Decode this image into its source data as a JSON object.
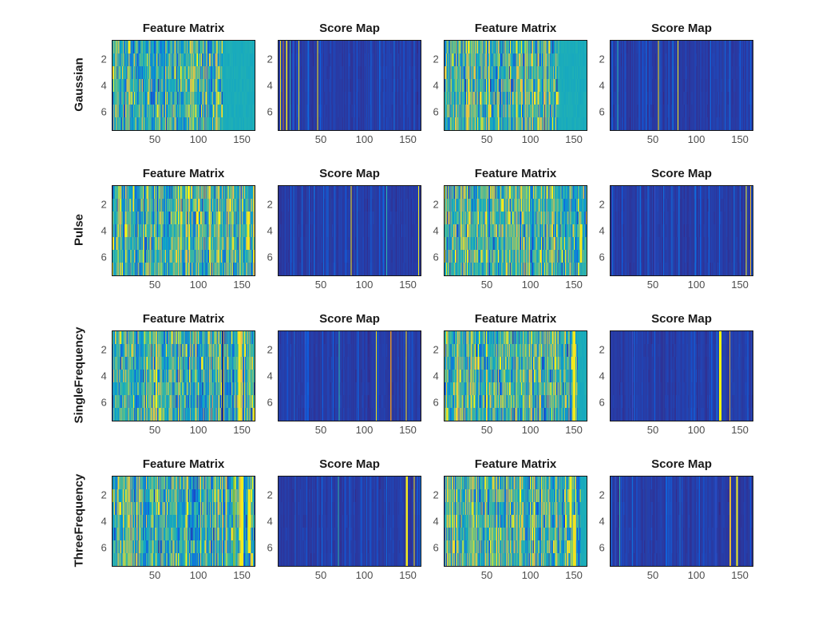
{
  "styles": {
    "background": "#ffffff",
    "title_color": "#1a1a1a",
    "tick_color": "#4d4d4d",
    "axis_color": "#151515",
    "score_background": "#352a87",
    "feature_base": "#21b1b4",
    "highlight_yellow": "#f9fb0e"
  },
  "chart_data": {
    "type": "heatmap",
    "colormap": "parula",
    "grid": "4 rows x 4 columns",
    "n_cols": 165,
    "n_rows": 7,
    "xlim": [
      1,
      165
    ],
    "ylim": [
      1,
      7
    ],
    "xticks": [
      50,
      100,
      150
    ],
    "yticks": [
      2,
      4,
      6
    ],
    "column_titles": [
      "Feature Matrix",
      "Score Map",
      "Feature Matrix",
      "Score Map"
    ],
    "row_labels": [
      "Gaussian",
      "Pulse",
      "SingleFrequency",
      "ThreeFrequency"
    ],
    "rows": [
      {
        "label": "Gaussian",
        "subplots": [
          {
            "title": "Feature Matrix",
            "kind": "feature",
            "seed": 101,
            "hi_cols": 0.1,
            "lo_cols": 0.08,
            "flat_right": 128
          },
          {
            "title": "Score Map",
            "kind": "score",
            "seed": 102,
            "stripes": [
              {
                "x": 3,
                "color": "#ece51f"
              },
              {
                "x": 6,
                "color": "#d4722a"
              },
              {
                "x": 10,
                "color": "#f2ea1e"
              },
              {
                "x": 14,
                "color": "#2cb8ac"
              },
              {
                "x": 18,
                "color": "#3050c8"
              },
              {
                "x": 24,
                "color": "#ece51f"
              },
              {
                "x": 31,
                "color": "#2b3f9e"
              },
              {
                "x": 46,
                "color": "#f5ee20"
              },
              {
                "x": 104,
                "color": "#2b3f9e"
              },
              {
                "x": 113,
                "color": "#2b3f9e"
              },
              {
                "x": 121,
                "color": "#2b3f9e"
              }
            ]
          },
          {
            "title": "Feature Matrix",
            "kind": "feature",
            "seed": 103,
            "hi_cols": 0.15,
            "lo_cols": 0.09,
            "flat_right": 133
          },
          {
            "title": "Score Map",
            "kind": "score",
            "seed": 104,
            "stripes": [
              {
                "x": 9,
                "color": "#2cb8ac"
              },
              {
                "x": 22,
                "color": "#2b3f9e"
              },
              {
                "x": 56,
                "color": "#f2ea1e"
              },
              {
                "x": 79,
                "color": "#f2ea1e"
              },
              {
                "x": 102,
                "color": "#2b3f9e"
              },
              {
                "x": 131,
                "color": "#2b3f9e"
              }
            ]
          }
        ]
      },
      {
        "label": "Pulse",
        "subplots": [
          {
            "title": "Feature Matrix",
            "kind": "feature",
            "seed": 201,
            "hi_cols": 0.13,
            "lo_cols": 0.09,
            "stripes": [
              {
                "x": 157,
                "w": 3,
                "color": "#f2ea1e",
                "rows": [
                  2,
                  4
                ]
              }
            ]
          },
          {
            "title": "Score Map",
            "kind": "score",
            "seed": 202,
            "stripes": [
              {
                "x": 33,
                "color": "#2b3f9e"
              },
              {
                "x": 61,
                "color": "#2b3f9e"
              },
              {
                "x": 85,
                "color": "#f2ea1e"
              },
              {
                "x": 112,
                "color": "#2b3f9e"
              },
              {
                "x": 126,
                "color": "#2cb8ac"
              },
              {
                "x": 149,
                "color": "#2b3f9e"
              },
              {
                "x": 163,
                "color": "#f2ea1e"
              }
            ]
          },
          {
            "title": "Feature Matrix",
            "kind": "feature",
            "seed": 203,
            "hi_cols": 0.13,
            "lo_cols": 0.1,
            "stripes": [
              {
                "x": 158,
                "w": 3,
                "color": "#f2ea1e",
                "rows": [
                  3,
                  5
                ]
              }
            ]
          },
          {
            "title": "Score Map",
            "kind": "score",
            "seed": 204,
            "stripes": [
              {
                "x": 21,
                "color": "#2b3f9e"
              },
              {
                "x": 52,
                "color": "#3050c8"
              },
              {
                "x": 96,
                "color": "#2b3f9e"
              },
              {
                "x": 141,
                "color": "#2b3f9e"
              },
              {
                "x": 158,
                "color": "#f2ea1e"
              },
              {
                "x": 163,
                "color": "#e8b832"
              }
            ]
          }
        ]
      },
      {
        "label": "SingleFrequency",
        "subplots": [
          {
            "title": "Feature Matrix",
            "kind": "feature",
            "seed": 301,
            "hi_cols": 0.12,
            "lo_cols": 0.16,
            "stripes": [
              {
                "x": 128,
                "w": 2,
                "color": "#1c2f8c",
                "rows": [
                  0,
                  6
                ]
              },
              {
                "x": 147,
                "w": 3,
                "color": "#f2ea1e",
                "rows": [
                  0,
                  6
                ]
              }
            ]
          },
          {
            "title": "Score Map",
            "kind": "score",
            "seed": 302,
            "stripes": [
              {
                "x": 31,
                "color": "#3050c8"
              },
              {
                "x": 49,
                "color": "#2b3f9e"
              },
              {
                "x": 71,
                "color": "#2cb8ac"
              },
              {
                "x": 96,
                "color": "#2b3f9e"
              },
              {
                "x": 114,
                "color": "#ece51f"
              },
              {
                "x": 131,
                "color": "#e08b25"
              },
              {
                "x": 149,
                "color": "#f2ea1e"
              },
              {
                "x": 157,
                "color": "#2b3f9e"
              }
            ]
          },
          {
            "title": "Feature Matrix",
            "kind": "feature",
            "seed": 303,
            "hi_cols": 0.14,
            "lo_cols": 0.16,
            "flat_right": 155,
            "stripes": [
              {
                "x": 150,
                "w": 3,
                "color": "#f2ea1e",
                "rows": [
                  0,
                  6
                ]
              }
            ]
          },
          {
            "title": "Score Map",
            "kind": "score",
            "seed": 304,
            "stripes": [
              {
                "x": 26,
                "color": "#3050c8"
              },
              {
                "x": 62,
                "color": "#2b3f9e"
              },
              {
                "x": 92,
                "color": "#2b3f9e"
              },
              {
                "x": 127,
                "w": 3,
                "color": "#f9fb0e"
              },
              {
                "x": 139,
                "color": "#e0a62a"
              },
              {
                "x": 152,
                "color": "#2b3f9e"
              }
            ]
          }
        ]
      },
      {
        "label": "ThreeFrequency",
        "subplots": [
          {
            "title": "Feature Matrix",
            "kind": "feature",
            "seed": 401,
            "hi_cols": 0.13,
            "lo_cols": 0.17,
            "stripes": [
              {
                "x": 141,
                "w": 2,
                "color": "#7dbe41",
                "rows": [
                  0,
                  6
                ]
              },
              {
                "x": 150,
                "w": 3,
                "color": "#f2ea1e",
                "rows": [
                  0,
                  6
                ]
              },
              {
                "x": 158,
                "w": 3,
                "color": "#f2ea1e",
                "rows": [
                  1,
                  5
                ]
              }
            ]
          },
          {
            "title": "Score Map",
            "kind": "score",
            "seed": 402,
            "stripes": [
              {
                "x": 22,
                "color": "#2b3f9e"
              },
              {
                "x": 47,
                "color": "#2b3f9e"
              },
              {
                "x": 70,
                "color": "#2cb8ac"
              },
              {
                "x": 102,
                "color": "#2b3f9e"
              },
              {
                "x": 121,
                "color": "#2b3f9e"
              },
              {
                "x": 149,
                "w": 2,
                "color": "#f2ea1e"
              },
              {
                "x": 158,
                "color": "#ece51f"
              }
            ]
          },
          {
            "title": "Feature Matrix",
            "kind": "feature",
            "seed": 403,
            "hi_cols": 0.14,
            "lo_cols": 0.16,
            "flat_right": 158,
            "stripes": [
              {
                "x": 146,
                "w": 3,
                "color": "#f2ea1e",
                "rows": [
                  0,
                  3
                ]
              },
              {
                "x": 150,
                "w": 3,
                "color": "#ece51f",
                "rows": [
                  3,
                  6
                ]
              }
            ]
          },
          {
            "title": "Score Map",
            "kind": "score",
            "seed": 404,
            "stripes": [
              {
                "x": 6,
                "color": "#3050c8"
              },
              {
                "x": 11,
                "color": "#2cb8ac"
              },
              {
                "x": 42,
                "color": "#2b3f9e"
              },
              {
                "x": 82,
                "color": "#2b3f9e"
              },
              {
                "x": 123,
                "color": "#3050c8"
              },
              {
                "x": 139,
                "w": 2,
                "color": "#e8b832"
              },
              {
                "x": 147,
                "w": 2,
                "color": "#f2ea1e"
              },
              {
                "x": 161,
                "color": "#2b3f9e"
              }
            ]
          }
        ]
      }
    ]
  }
}
